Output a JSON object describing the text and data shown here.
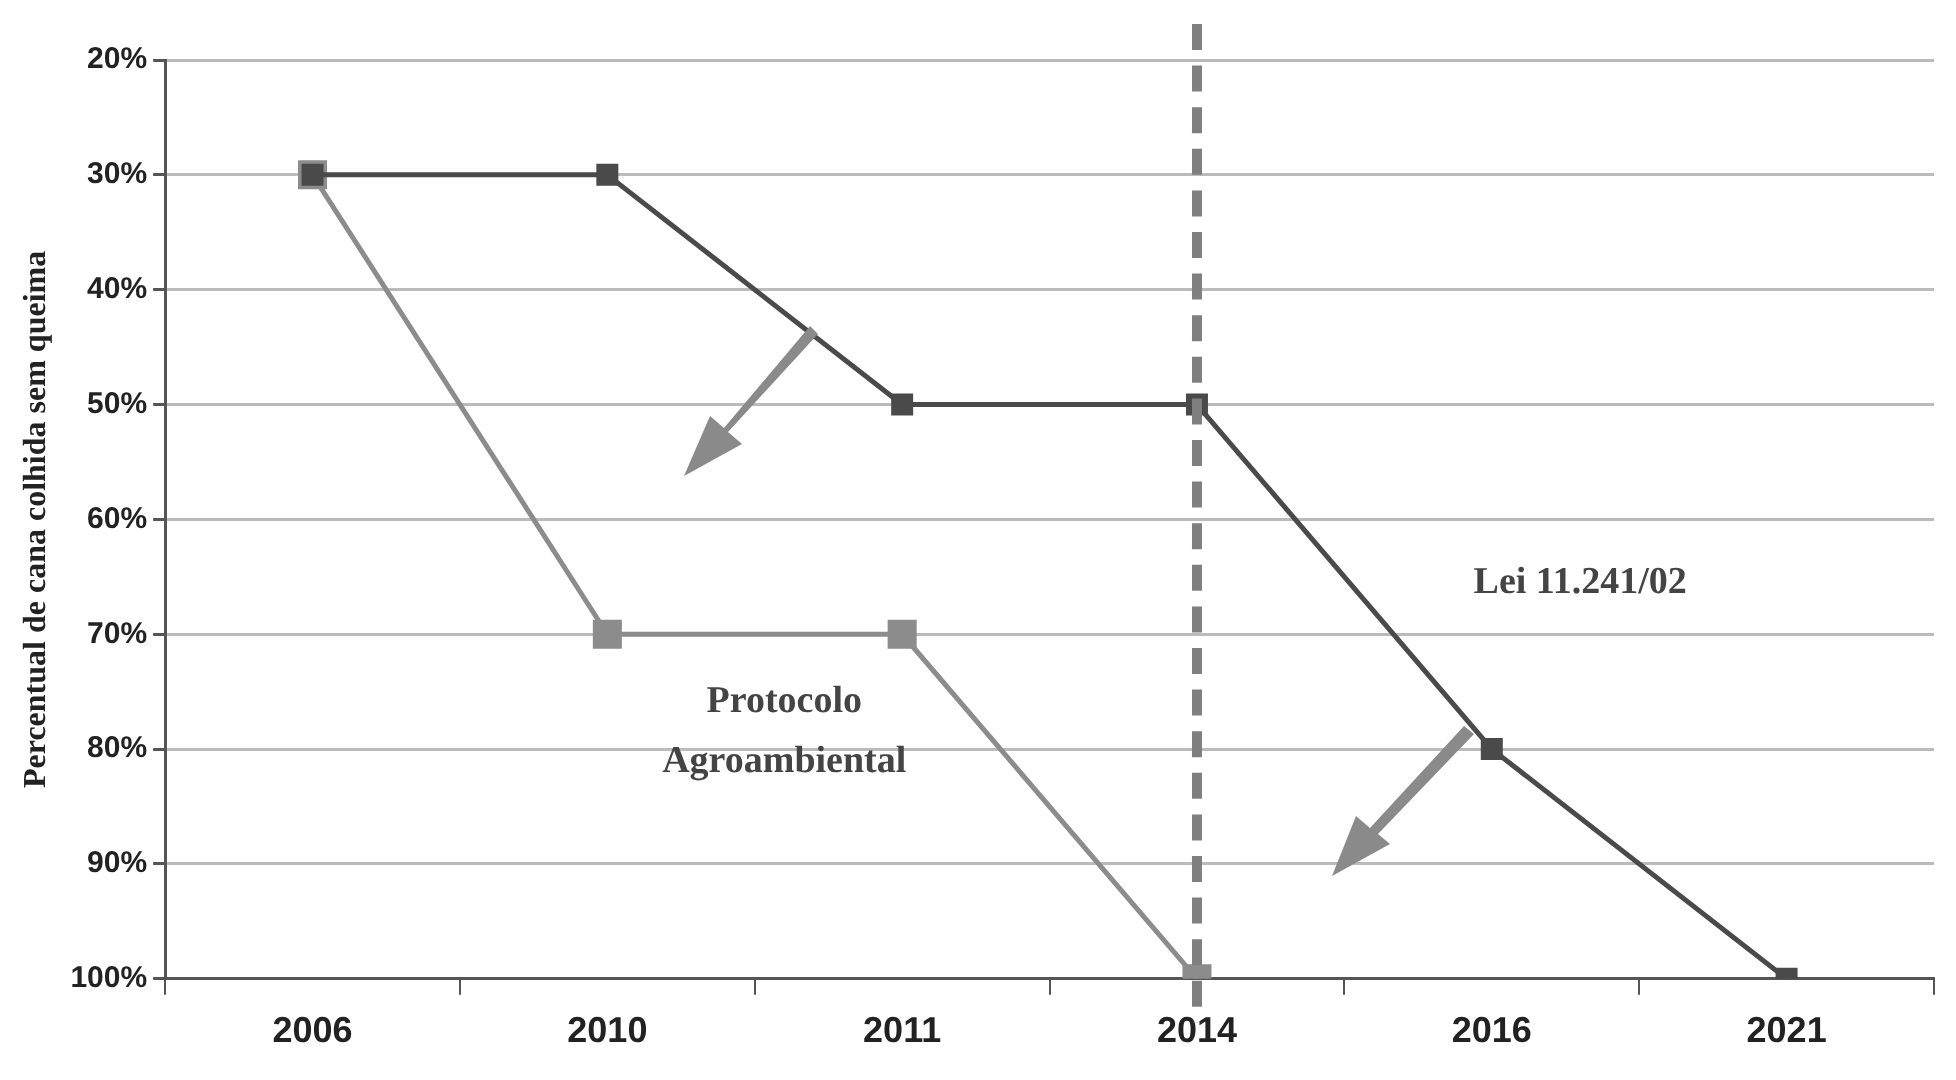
{
  "chart_data": {
    "type": "line",
    "ylabel": "Percentual de cana colhida sem queima",
    "categories": [
      "2006",
      "2010",
      "2011",
      "2014",
      "2016",
      "2021"
    ],
    "series": [
      {
        "color": "#4a4a4a",
        "values": [
          30,
          30,
          50,
          50,
          80,
          100
        ]
      },
      {
        "color": "#8c8c8c",
        "values": [
          30,
          70,
          70,
          100,
          null,
          null
        ]
      }
    ],
    "ylim": [
      100,
      20
    ],
    "yticks": [
      {
        "value": 20,
        "label": "20%"
      },
      {
        "value": 30,
        "label": "30%"
      },
      {
        "value": 40,
        "label": "40%"
      },
      {
        "value": 50,
        "label": "50%"
      },
      {
        "value": 60,
        "label": "60%"
      },
      {
        "value": 70,
        "label": "70%"
      },
      {
        "value": 80,
        "label": "80%"
      },
      {
        "value": 90,
        "label": "90%"
      },
      {
        "value": 100,
        "label": "100%"
      }
    ],
    "grid": "y",
    "legend": false,
    "marker": "square",
    "line_style": "solid",
    "ref_lines": [
      {
        "axis": "x",
        "value": "2014",
        "color": "#7f7f7f",
        "line_style": "dashed"
      }
    ],
    "annotations": [
      "Lei 11.241/02",
      "Protocolo Agroambiental"
    ]
  }
}
